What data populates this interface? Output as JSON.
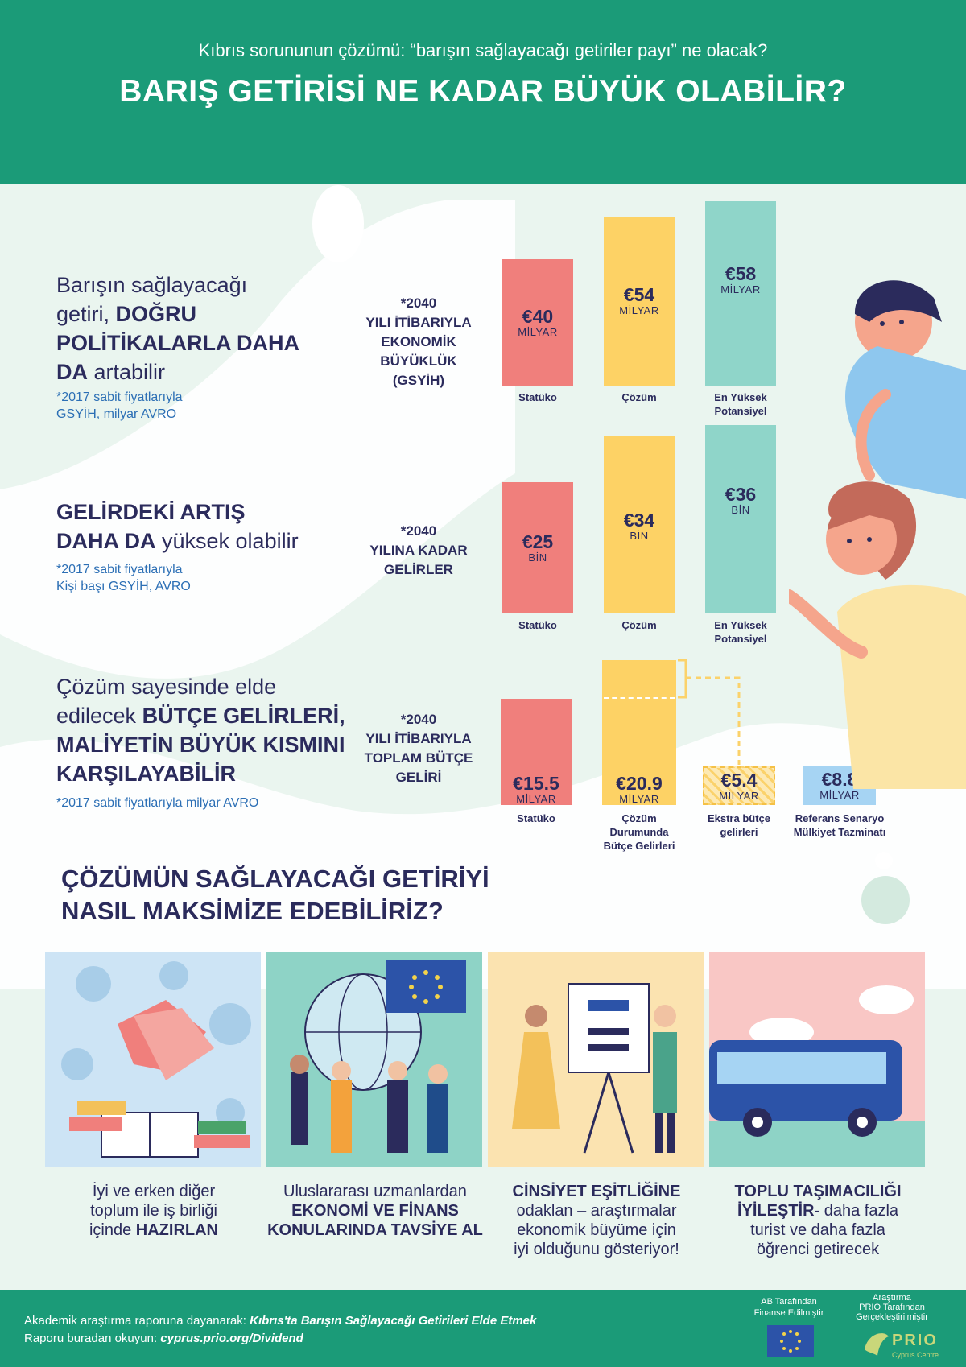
{
  "header": {
    "subtitle": "Kıbrıs sorununun çözümü: “barışın sağlayacağı getiriler payı” ne olacak?",
    "title": "BARIŞ GETİRİSİ NE KADAR BÜYÜK OLABİLİR?"
  },
  "section1": {
    "t1": "Barışın sağlayacağı",
    "t2": "getiri, ",
    "t2b": "DOĞRU",
    "t3b": "POLİTİKALARLA DAHA",
    "t4b": "DA",
    "t4": " artabilir",
    "note1": "*2017 sabit fiyatlarıyla",
    "note2": "GSYİH, milyar AVRO",
    "rowlabel": [
      "*2040",
      "YILI İTİBARIYLA",
      "EKONOMİK",
      "BÜYÜKLÜK",
      "(GSYİH)"
    ],
    "bars": [
      {
        "value": "€40",
        "unit": "MİLYAR",
        "label": [
          "Statüko",
          ""
        ]
      },
      {
        "value": "€54",
        "unit": "MİLYAR",
        "label": [
          "Çözüm",
          ""
        ]
      },
      {
        "value": "€58",
        "unit": "MİLYAR",
        "label": [
          "En Yüksek",
          "Potansiyel"
        ]
      }
    ]
  },
  "section2": {
    "t1b": "GELİRDEKİ ARTIŞ",
    "t2b": "DAHA DA",
    "t2": " yüksek olabilir",
    "note1": "*2017 sabit fiyatlarıyla",
    "note2": "Kişi başı GSYİH, AVRO",
    "rowlabel": [
      "*2040",
      "YILINA KADAR",
      "GELİRLER"
    ],
    "bars": [
      {
        "value": "€25",
        "unit": "BİN",
        "label": [
          "Statüko",
          ""
        ]
      },
      {
        "value": "€34",
        "unit": "BİN",
        "label": [
          "Çözüm",
          ""
        ]
      },
      {
        "value": "€36",
        "unit": "BİN",
        "label": [
          "En Yüksek",
          "Potansiyel"
        ]
      }
    ]
  },
  "section3": {
    "t1": "Çözüm sayesinde elde",
    "t2": "edilecek ",
    "t2b": "BÜTÇE GELİRLERİ,",
    "t3b": "MALİYETİN BÜYÜK KISMINI",
    "t4b": "KARŞILAYABİLİR",
    "note1": "*2017 sabit fiyatlarıyla milyar AVRO",
    "rowlabel": [
      "*2040",
      "YILI İTİBARIYLA",
      "TOPLAM BÜTÇE",
      "GELİRİ"
    ],
    "bars": [
      {
        "value": "€15.5",
        "unit": "MİLYAR",
        "label": [
          "Statüko",
          "",
          ""
        ]
      },
      {
        "value": "€20.9",
        "unit": "MİLYAR",
        "label": [
          "Çözüm",
          "Durumunda",
          "Bütçe Gelirleri"
        ]
      },
      {
        "value": "€5.4",
        "unit": "MİLYAR",
        "label": [
          "Ekstra bütçe",
          "gelirleri",
          ""
        ]
      },
      {
        "value": "€8.8",
        "unit": "MİLYAR",
        "label": [
          "Referans Senaryo",
          "Mülkiyet Tazminatı",
          ""
        ]
      }
    ]
  },
  "how": {
    "line1": "ÇÖZÜMÜN SAĞLAYACAĞI GETİRİYİ",
    "line2": "NASIL MAKSİMİZE EDEBİLİRİZ?"
  },
  "captions": [
    {
      "l1": "İyi ve erken diğer",
      "l2": "toplum ile iş birliği",
      "l3": "içinde ",
      "l3b": "HAZIRLAN",
      "l4": ""
    },
    {
      "l1": "Uluslararası uzmanlardan",
      "l2b": "EKONOMİ VE FİNANS",
      "l3b": "KONULARINDA TAVSİYE AL"
    },
    {
      "l1b": "CİNSİYET EŞİTLİĞİNE",
      "l2": "odaklan – araştırmalar",
      "l3": "ekonomik büyüme için",
      "l4": "iyi olduğunu gösteriyor!"
    },
    {
      "l1b": "TOPLU  TAŞIMACILIĞI",
      "l2b": "İYİLEŞTİR",
      "l2": "- daha fazla",
      "l3": "turist ve daha fazla",
      "l4": "öğrenci getirecek"
    }
  ],
  "footer": {
    "line1": "Akademik araştırma raporuna dayanarak: ",
    "line1i": "Kıbrıs'ta Barışın Sağlayacağı Getirileri Elde Etmek",
    "line2": "Raporu buradan okuyun: ",
    "line2b": "cyprus.prio.org/Dividend",
    "eu1": "AB Tarafından",
    "eu2": "Finanse Edilmiştir",
    "prio1": "Araştırma",
    "prio2": "PRIO Tarafından",
    "prio3": "Gerçekleştirilmiştir",
    "prio_logo": "PRIO",
    "prio_sub": "Cyprus Centre"
  },
  "colors": {
    "header": "#1b9b78",
    "statuko": "#f07f7c",
    "cozum": "#fdd265",
    "potansiyel": "#8fd5c9",
    "tazminat": "#a6d4f3"
  }
}
